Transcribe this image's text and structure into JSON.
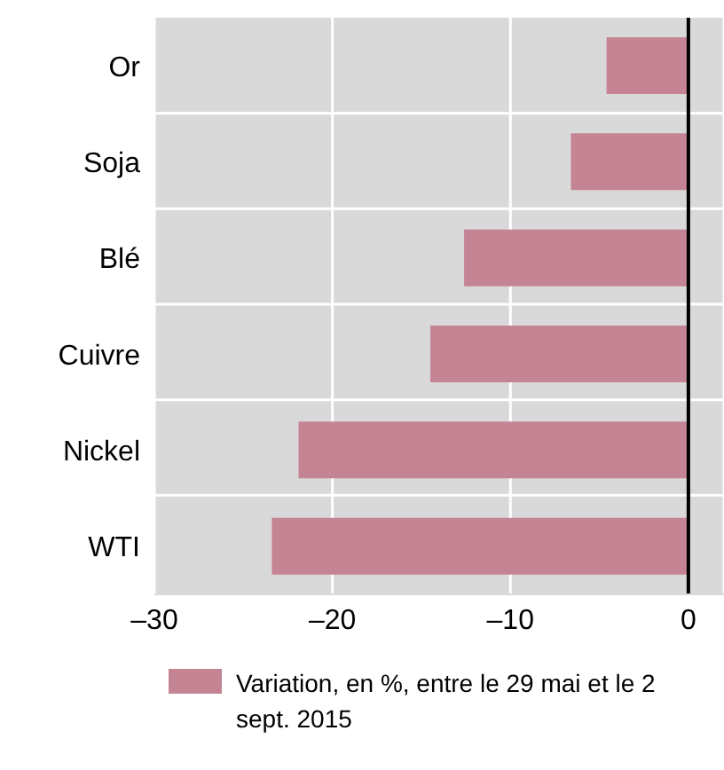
{
  "chart_data": {
    "type": "bar",
    "orientation": "horizontal",
    "categories": [
      "Or",
      "Soja",
      "Blé",
      "Cuivre",
      "Nickel",
      "WTI"
    ],
    "series": [
      {
        "name": "Variation, en %, entre le 29 mai et le 2 sept. 2015",
        "color": "#c48494",
        "values": [
          -4.6,
          -6.6,
          -12.6,
          -14.5,
          -21.9,
          -23.4
        ]
      }
    ],
    "xlim": [
      -30,
      2
    ],
    "xticks": [
      {
        "value": -30,
        "label": "–30"
      },
      {
        "value": -20,
        "label": "–20"
      },
      {
        "value": -10,
        "label": "–10"
      },
      0
    ],
    "grid": true,
    "legend": "bottom",
    "ref_lines": [
      {
        "axis": "x",
        "value": 0,
        "color": "#000000"
      }
    ]
  }
}
